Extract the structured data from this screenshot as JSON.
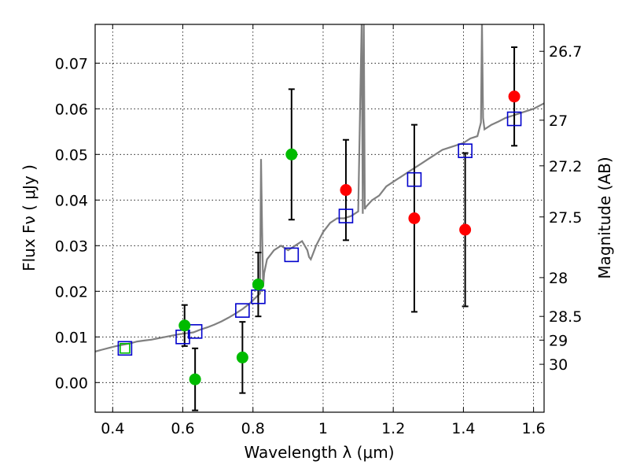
{
  "chart_data": {
    "type": "scatter",
    "xlabel": "Wavelength  λ (μm)",
    "ylabel": "Flux  Fν  ( μJy )",
    "ylabel_right": "Magnitude (AB)",
    "xlim": [
      0.35,
      1.63
    ],
    "ylim": [
      -0.0065,
      0.0785
    ],
    "grid": true,
    "x_ticks": [
      0.4,
      0.6,
      0.8,
      1.0,
      1.2,
      1.4,
      1.6
    ],
    "x_tick_labels": [
      "0.4",
      "0.6",
      "0.8",
      "1",
      "1.2",
      "1.4",
      "1.6"
    ],
    "y_ticks": [
      0.0,
      0.01,
      0.02,
      0.03,
      0.04,
      0.05,
      0.06,
      0.07
    ],
    "y_tick_labels": [
      "0.00",
      "0.01",
      "0.02",
      "0.03",
      "0.04",
      "0.05",
      "0.06",
      "0.07"
    ],
    "right_ticks": [
      {
        "flux": 0.0726,
        "label": "26.7"
      },
      {
        "flux": 0.0575,
        "label": "27"
      },
      {
        "flux": 0.0475,
        "label": "27.2"
      },
      {
        "flux": 0.0363,
        "label": "27.5"
      },
      {
        "flux": 0.023,
        "label": "28"
      },
      {
        "flux": 0.0145,
        "label": "28.5"
      },
      {
        "flux": 0.0093,
        "label": "29"
      },
      {
        "flux": 0.004,
        "label": "30"
      }
    ],
    "colors": {
      "model": "#808080",
      "model_points": "#0000cc",
      "detections": "#ff0000",
      "hst": "#00bb00",
      "errorbars": "#000000"
    },
    "model_spectrum": {
      "x": [
        0.35,
        0.37,
        0.39,
        0.41,
        0.43,
        0.45,
        0.47,
        0.49,
        0.51,
        0.53,
        0.55,
        0.57,
        0.59,
        0.61,
        0.63,
        0.65,
        0.67,
        0.69,
        0.71,
        0.73,
        0.75,
        0.77,
        0.79,
        0.81,
        0.82,
        0.823,
        0.826,
        0.829,
        0.832,
        0.84,
        0.86,
        0.88,
        0.9,
        0.92,
        0.94,
        0.955,
        0.96,
        0.965,
        0.97,
        0.98,
        1.0,
        1.02,
        1.04,
        1.06,
        1.08,
        1.1,
        1.11,
        1.113,
        1.116,
        1.119,
        1.122,
        1.14,
        1.16,
        1.18,
        1.2,
        1.22,
        1.24,
        1.26,
        1.28,
        1.3,
        1.32,
        1.34,
        1.36,
        1.38,
        1.4,
        1.42,
        1.44,
        1.45,
        1.453,
        1.456,
        1.46,
        1.48,
        1.5,
        1.52,
        1.54,
        1.56,
        1.58,
        1.6,
        1.63
      ],
      "y": [
        0.0068,
        0.0072,
        0.0076,
        0.008,
        0.0083,
        0.0086,
        0.009,
        0.0092,
        0.0094,
        0.0097,
        0.01,
        0.0103,
        0.0106,
        0.0108,
        0.011,
        0.0116,
        0.0121,
        0.0127,
        0.0134,
        0.0142,
        0.0151,
        0.0161,
        0.0173,
        0.0188,
        0.0195,
        0.049,
        0.034,
        0.021,
        0.024,
        0.027,
        0.029,
        0.03,
        0.029,
        0.03,
        0.031,
        0.029,
        0.0275,
        0.027,
        0.028,
        0.03,
        0.033,
        0.035,
        0.036,
        0.036,
        0.0365,
        0.0375,
        0.079,
        0.037,
        0.079,
        0.038,
        0.0385,
        0.04,
        0.041,
        0.043,
        0.044,
        0.045,
        0.046,
        0.047,
        0.048,
        0.049,
        0.05,
        0.051,
        0.0515,
        0.052,
        0.0525,
        0.0535,
        0.054,
        0.057,
        0.079,
        0.058,
        0.0555,
        0.0565,
        0.0572,
        0.058,
        0.0585,
        0.059,
        0.0595,
        0.06,
        0.0612
      ]
    },
    "model_points": {
      "x": [
        0.435,
        0.6,
        0.635,
        0.77,
        0.815,
        0.91,
        1.065,
        1.26,
        1.405,
        1.545
      ],
      "y": [
        0.0075,
        0.01,
        0.0112,
        0.0158,
        0.0188,
        0.028,
        0.0365,
        0.0445,
        0.0508,
        0.0578
      ]
    },
    "hst_detections": {
      "x": [
        0.435,
        0.605,
        0.635,
        0.77,
        0.815,
        0.91
      ],
      "y": [
        0.0075,
        0.0125,
        0.0007,
        0.0055,
        0.0215,
        0.05
      ],
      "err": [
        0.0,
        0.0045,
        0.0068,
        0.0078,
        0.007,
        0.0143
      ]
    },
    "red_detections": {
      "x": [
        1.065,
        1.26,
        1.405,
        1.545
      ],
      "y": [
        0.0422,
        0.036,
        0.0335,
        0.0627
      ],
      "err": [
        0.011,
        0.0205,
        0.0168,
        0.0108
      ]
    }
  }
}
